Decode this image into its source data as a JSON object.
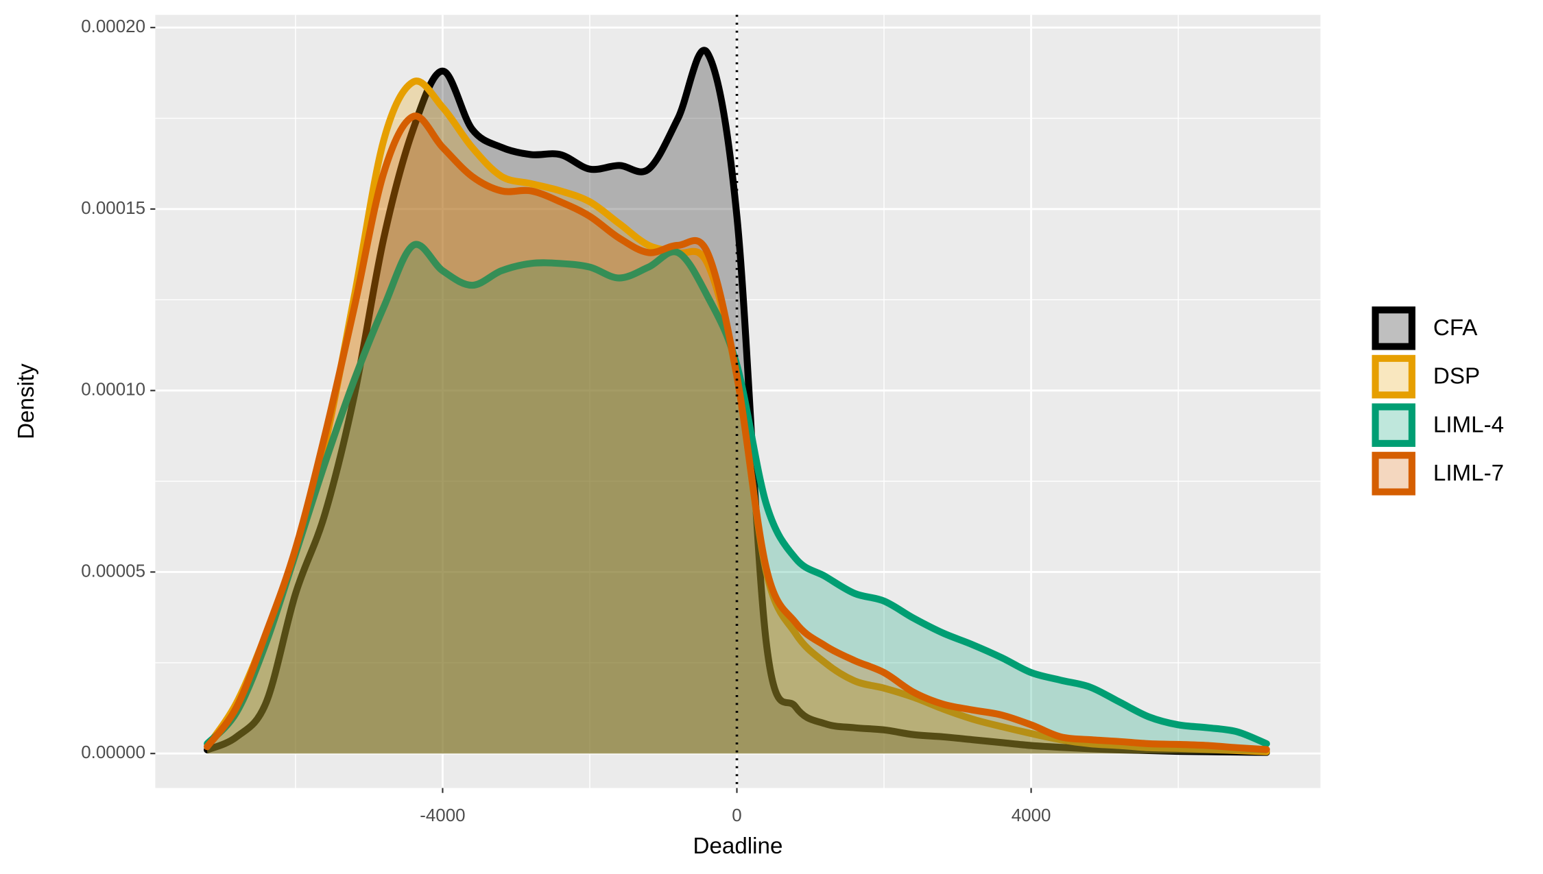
{
  "chart_data": {
    "type": "density",
    "x_label": "Deadline",
    "y_label": "Density",
    "x": [
      -7200,
      -6800,
      -6400,
      -6000,
      -5600,
      -5200,
      -4800,
      -4400,
      -4000,
      -3600,
      -3200,
      -2800,
      -2400,
      -2000,
      -1600,
      -1200,
      -800,
      -400,
      0,
      400,
      800,
      1200,
      1600,
      2000,
      2400,
      2800,
      3200,
      3600,
      4000,
      4400,
      4800,
      5200,
      5600,
      6000,
      6400,
      6800,
      7200
    ],
    "series": [
      {
        "name": "CFA",
        "color": "#000000",
        "values": [
          1e-06,
          4.6e-06,
          1.4e-05,
          4.4e-05,
          6.6e-05,
          9.87e-05,
          0.000142,
          0.000172,
          0.000188,
          0.000172,
          0.000167,
          0.000165,
          0.000165,
          0.000161,
          0.000162,
          0.000161,
          0.000175,
          0.000193,
          0.000148,
          3.05e-05,
          1.28e-05,
          8.2e-06,
          7.1e-06,
          6.5e-06,
          5.2e-06,
          4.6e-06,
          3.8e-06,
          3e-06,
          2.2e-06,
          1.7e-06,
          1.3e-06,
          1e-06,
          8e-07,
          6e-07,
          5e-07,
          4e-07,
          3e-07
        ]
      },
      {
        "name": "DSP",
        "color": "#E69F00",
        "values": [
          1.9e-06,
          1.4e-05,
          3.3e-05,
          5.5e-05,
          8.5e-05,
          0.000126,
          0.000169,
          0.000185,
          0.000178,
          0.000167,
          0.000159,
          0.000157,
          0.000155,
          0.000152,
          0.000146,
          0.00014,
          0.000138,
          0.000135,
          0.000104,
          5e-05,
          3.3e-05,
          2.5e-05,
          2e-05,
          1.8e-05,
          1.55e-05,
          1.23e-05,
          9.5e-06,
          7.4e-06,
          5.5e-06,
          3.8e-06,
          2.7e-06,
          2.2e-06,
          1.6e-06,
          1.4e-06,
          1.1e-06,
          8e-07,
          5e-07
        ]
      },
      {
        "name": "LIML-4",
        "color": "#009E73",
        "values": [
          2.7e-06,
          1.14e-05,
          3.05e-05,
          5.5e-05,
          8e-05,
          0.000103,
          0.000123,
          0.00014,
          0.000133,
          0.000129,
          0.000133,
          0.000135,
          0.000135,
          0.000134,
          0.000131,
          0.000134,
          0.000138,
          0.000126,
          0.000107,
          6.87e-05,
          5.37e-05,
          4.88e-05,
          4.41e-05,
          4.2e-05,
          3.73e-05,
          3.32e-05,
          3e-05,
          2.64e-05,
          2.23e-05,
          2.02e-05,
          1.83e-05,
          1.42e-05,
          1.01e-05,
          7.9e-06,
          7.1e-06,
          6e-06,
          2.7e-06
        ]
      },
      {
        "name": "LIML-7",
        "color": "#D55E00",
        "values": [
          1.9e-06,
          1.28e-05,
          3.32e-05,
          5.64e-05,
          8.77e-05,
          0.000123,
          0.00016,
          0.0001755,
          0.000167,
          0.000159,
          0.000155,
          0.000155,
          0.000152,
          0.000148,
          0.000142,
          0.000138,
          0.00014,
          0.000138,
          0.000104,
          5.1e-05,
          3.6e-05,
          2.97e-05,
          2.56e-05,
          2.23e-05,
          1.69e-05,
          1.36e-05,
          1.2e-05,
          1.06e-05,
          7.9e-06,
          4.6e-06,
          3.8e-06,
          3.3e-06,
          2.7e-06,
          2.5e-06,
          2.2e-06,
          1.6e-06,
          1.1e-06
        ]
      }
    ],
    "xlim": [
      -7906,
      7933
    ],
    "xticks": [
      -4000,
      0,
      4000
    ],
    "ylim": [
      -9.5e-06,
      0.0002035
    ],
    "yticks": [
      {
        "value": 0,
        "label": "0.00000"
      },
      {
        "value": 5e-05,
        "label": "0.00005"
      },
      {
        "value": 0.0001,
        "label": "0.00010"
      },
      {
        "value": 0.00015,
        "label": "0.00015"
      },
      {
        "value": 0.0002,
        "label": "0.00020"
      }
    ],
    "vline": 0,
    "grid": true,
    "legend": "right",
    "fill_opacity": 0.25
  }
}
